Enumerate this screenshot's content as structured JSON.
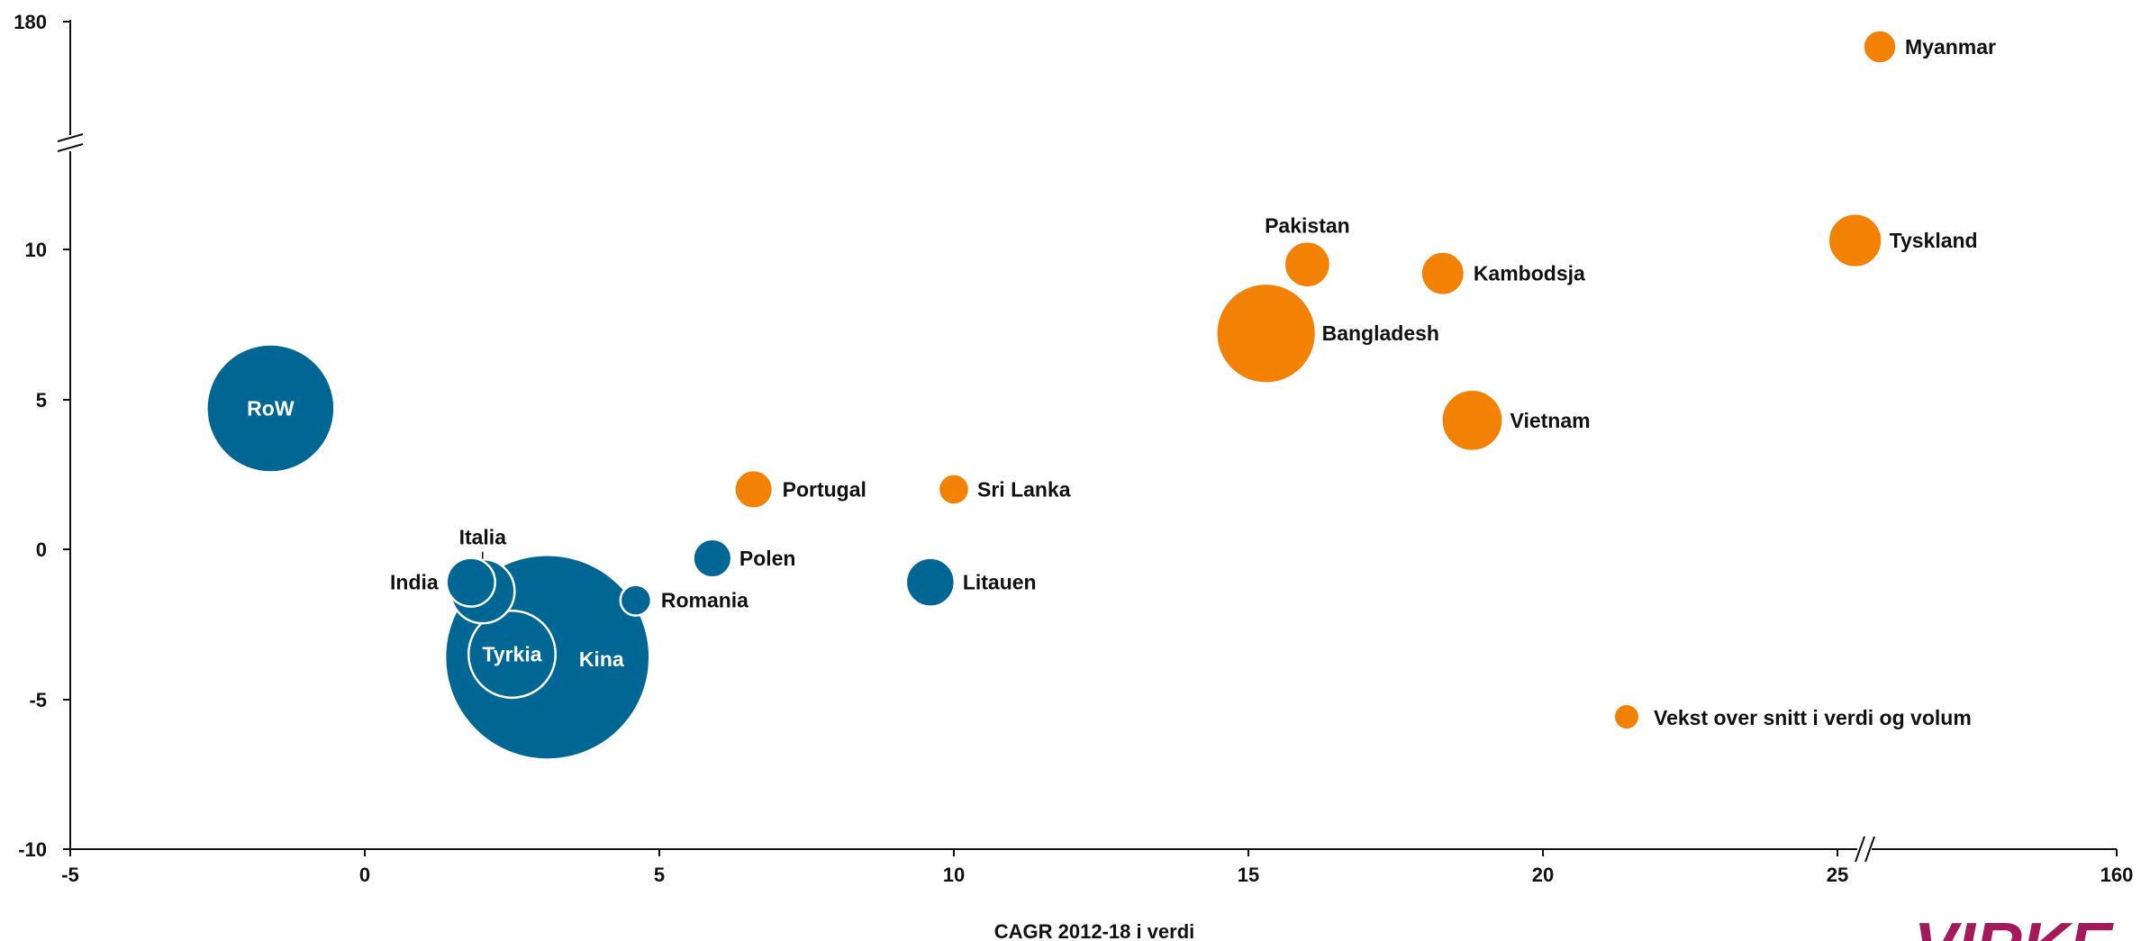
{
  "chart_data": {
    "type": "scatter",
    "subtype": "bubble",
    "xlabel": "CAGR 2012-18 i verdi",
    "ylabel": "",
    "xlim": [
      -5,
      30
    ],
    "ylim": [
      -10,
      14
    ],
    "x_ticks": [
      "-5",
      "0",
      "5",
      "10",
      "15",
      "20",
      "25",
      "160"
    ],
    "y_ticks": [
      "-10",
      "-5",
      "0",
      "5",
      "10",
      "180"
    ],
    "x_break": "between 25 and 160",
    "y_break": "between 10 and 180",
    "grid": false,
    "colors": {
      "below": "#006794",
      "above": "#f28104"
    },
    "points": [
      {
        "label": "RoW",
        "x": -1.6,
        "y": 4.7,
        "size": 5.0,
        "group": "below",
        "label_inside": true
      },
      {
        "label": "Kina",
        "x": 3.1,
        "y": -3.6,
        "size": 8.0,
        "group": "below",
        "label_inside": true
      },
      {
        "label": "Tyrkia",
        "x": 2.5,
        "y": -3.5,
        "size": 3.4,
        "group": "below",
        "label_inside": true
      },
      {
        "label": "India",
        "x": 1.8,
        "y": -1.1,
        "size": 1.9,
        "group": "below"
      },
      {
        "label": "Italia",
        "x": 2.0,
        "y": -1.4,
        "size": 2.5,
        "group": "below"
      },
      {
        "label": "Romania",
        "x": 4.6,
        "y": -1.7,
        "size": 1.2,
        "group": "below"
      },
      {
        "label": "Polen",
        "x": 5.9,
        "y": -0.3,
        "size": 1.5,
        "group": "below"
      },
      {
        "label": "Litauen",
        "x": 9.6,
        "y": -1.1,
        "size": 1.9,
        "group": "below"
      },
      {
        "label": "Portugal",
        "x": 6.6,
        "y": 2.0,
        "size": 1.5,
        "group": "above"
      },
      {
        "label": "Sri Lanka",
        "x": 10.0,
        "y": 2.0,
        "size": 1.2,
        "group": "above"
      },
      {
        "label": "Bangladesh",
        "x": 15.3,
        "y": 7.2,
        "size": 3.9,
        "group": "above"
      },
      {
        "label": "Pakistan",
        "x": 16.0,
        "y": 9.5,
        "size": 1.8,
        "group": "above"
      },
      {
        "label": "Kambodsja",
        "x": 18.3,
        "y": 9.2,
        "size": 1.7,
        "group": "above"
      },
      {
        "label": "Vietnam",
        "x": 18.8,
        "y": 4.3,
        "size": 2.4,
        "group": "above"
      },
      {
        "label": "Tyskland",
        "x": 25.3,
        "y": 10.3,
        "size": 2.1,
        "group": "above"
      },
      {
        "label": "Myanmar",
        "x": 25.7,
        "y": 170,
        "size": 1.3,
        "group": "above"
      }
    ],
    "legend": {
      "label": "Vekst over snitt i verdi og volum",
      "color": "#f28104",
      "placement": "bottom-right"
    }
  },
  "logo": {
    "text": "VIRKE",
    "color": "#a3195b"
  }
}
